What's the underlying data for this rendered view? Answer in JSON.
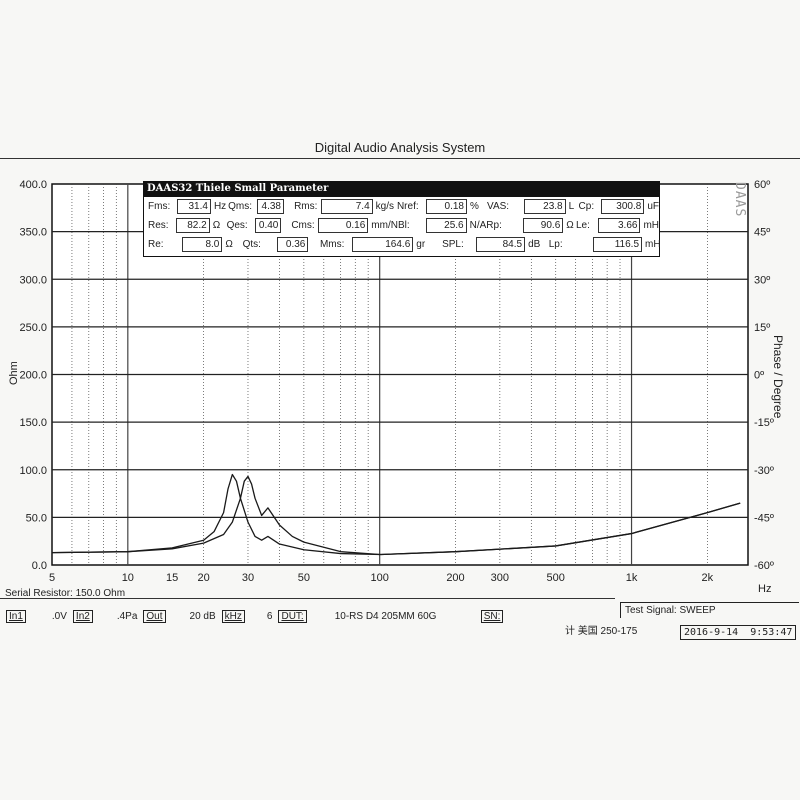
{
  "window_title": "Digital Audio Analysis System",
  "params_title": "DAAS32 Thiele Small Parameter",
  "params": [
    [
      {
        "l": "Fms:",
        "v": "31.4",
        "u": "Hz"
      },
      {
        "l": "Qms:",
        "v": "4.38",
        "u": ""
      },
      {
        "l": "Rms:",
        "v": "7.4",
        "u": "kg/s"
      },
      {
        "l": "Nref:",
        "v": "0.18",
        "u": "%"
      },
      {
        "l": "VAS:",
        "v": "23.8",
        "u": "L"
      },
      {
        "l": "Cp:",
        "v": "300.8",
        "u": "uF"
      }
    ],
    [
      {
        "l": "Res:",
        "v": "82.2",
        "u": "Ω"
      },
      {
        "l": "Qes:",
        "v": "0.40",
        "u": ""
      },
      {
        "l": "Cms:",
        "v": "0.16",
        "u": "mm/N"
      },
      {
        "l": "Bl:",
        "v": "25.6",
        "u": "N/A"
      },
      {
        "l": "Rp:",
        "v": "90.6",
        "u": "Ω"
      },
      {
        "l": "Le:",
        "v": "3.66",
        "u": "mH"
      }
    ],
    [
      {
        "l": "Re:",
        "v": "8.0",
        "u": "Ω"
      },
      {
        "l": "Qts:",
        "v": "0.36",
        "u": ""
      },
      {
        "l": "Mms:",
        "v": "164.6",
        "u": "gr"
      },
      {
        "l": "SPL:",
        "v": "84.5",
        "u": "dB"
      },
      {
        "l": "Lp:",
        "v": "116.5",
        "u": "mH"
      }
    ]
  ],
  "watermark": "DAAS",
  "footer": {
    "serial_resistor": "Serial Resistor: 150.0 Ohm",
    "test_signal": "Test Signal: SWEEP",
    "in1": "In1",
    "in1_val": ".0V",
    "in2": "In2",
    "in2_val": ".4Pa",
    "out": "Out",
    "out_val": "20 dB",
    "khz": "kHz",
    "khz_val": "6",
    "dut": "DUT:",
    "dut_val": "10-RS  D4  205MM  60G",
    "sn": "SN:",
    "note": "计 美国  250-175",
    "date": "2016-9-14",
    "time": "9:53:47"
  },
  "chart_data": {
    "type": "line",
    "x_scale": "log",
    "xlim": [
      5,
      2900
    ],
    "ylim": [
      0,
      400
    ],
    "y2lim": [
      -60,
      60
    ],
    "xlabel": "Hz",
    "ylabel": "Ohm",
    "y2label": "Phase / Degree",
    "x_ticks": [
      "5",
      "10",
      "15",
      "20",
      "30",
      "50",
      "100",
      "200",
      "300",
      "500",
      "1k",
      "2k"
    ],
    "x_tick_values": [
      5,
      10,
      15,
      20,
      30,
      50,
      100,
      200,
      300,
      500,
      1000,
      2000
    ],
    "y_ticks": [
      "0.0",
      "50.0",
      "100.0",
      "150.0",
      "200.0",
      "250.0",
      "300.0",
      "350.0",
      "400.0"
    ],
    "y2_ticks": [
      "-60º",
      "-45º",
      "-30º",
      "-15º",
      "0º",
      "15º",
      "30º",
      "45º",
      "60º"
    ],
    "grid": true,
    "series": [
      {
        "x": [
          5,
          10,
          15,
          20,
          22,
          24,
          25,
          26,
          27,
          28,
          30,
          32,
          34,
          36,
          40,
          50,
          70,
          100,
          200,
          500,
          1000,
          2000,
          2700
        ],
        "y": [
          13,
          14,
          18,
          26,
          35,
          55,
          80,
          95,
          88,
          70,
          45,
          30,
          26,
          30,
          22,
          16,
          12,
          11,
          14,
          20,
          33,
          55,
          65
        ]
      },
      {
        "x": [
          5,
          10,
          15,
          20,
          24,
          26,
          28,
          29,
          30,
          31,
          32,
          34,
          36,
          40,
          45,
          50,
          70,
          100,
          200,
          500,
          1000,
          2000,
          2700
        ],
        "y": [
          13,
          14,
          17,
          23,
          32,
          45,
          70,
          88,
          93,
          85,
          70,
          52,
          60,
          42,
          30,
          24,
          14,
          11,
          14,
          20,
          33,
          55,
          65
        ]
      }
    ]
  },
  "colors": {
    "line": "#1a1a1a",
    "grid": "#333333",
    "paper": "#f7f7f5"
  }
}
